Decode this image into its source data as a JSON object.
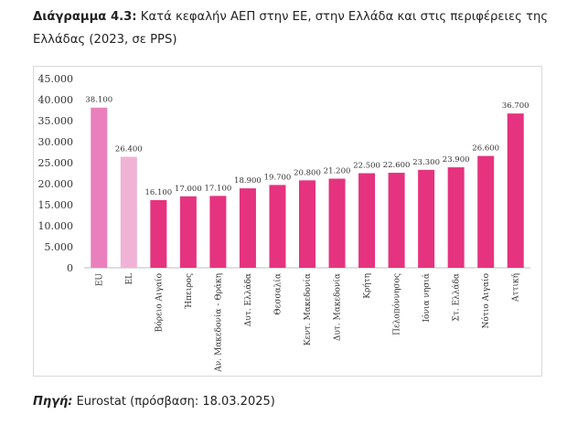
{
  "caption": {
    "label": "Διάγραμμα 4.3:",
    "text": "Κατά κεφαλήν ΑΕΠ στην ΕΕ, στην Ελλάδα και στις περιφέρειες της Ελλάδας (2023, σε PPS)"
  },
  "source": {
    "label": "Πηγή:",
    "text": "Eurostat (πρόσβαση: 18.03.2025)"
  },
  "chart_data": {
    "type": "bar",
    "categories": [
      "EU",
      "EL",
      "Βόρειο Αιγαίο",
      "Ήπειρος",
      "Αν. Μακεδονία - Θράκη",
      "Δυτ. Ελλάδα",
      "Θεσσαλία",
      "Κεντ. Μακεδονία",
      "Δυτ. Μακεδονία",
      "Κρήτη",
      "Πελοπόννησος",
      "Ιόνια νησιά",
      "Στ. Ελλάδα",
      "Νότιο Αιγαίο",
      "Αττική"
    ],
    "values": [
      38100,
      26400,
      16100,
      17000,
      17100,
      18900,
      19700,
      20800,
      21200,
      22500,
      22600,
      23300,
      23900,
      26600,
      36700
    ],
    "value_labels": [
      "38.100",
      "26.400",
      "16.100",
      "17.000",
      "17.100",
      "18.900",
      "19.700",
      "20.800",
      "21.200",
      "22.500",
      "22.600",
      "23.300",
      "23.900",
      "26.600",
      "36.700"
    ],
    "yticks": [
      0,
      5000,
      10000,
      15000,
      20000,
      25000,
      30000,
      35000,
      40000,
      45000
    ],
    "ytick_labels": [
      "0",
      "5.000",
      "10.000",
      "15.000",
      "20.000",
      "25.000",
      "30.000",
      "35.000",
      "40.000",
      "45.000"
    ],
    "ylim": [
      0,
      45000
    ],
    "colors": [
      "#e97fbd",
      "#f0b3d6",
      "#e5337f",
      "#e5337f",
      "#e5337f",
      "#e5337f",
      "#e5337f",
      "#e5337f",
      "#e5337f",
      "#e5337f",
      "#e5337f",
      "#e5337f",
      "#e5337f",
      "#e5337f",
      "#e5337f"
    ],
    "grid": false,
    "legend": "none"
  }
}
